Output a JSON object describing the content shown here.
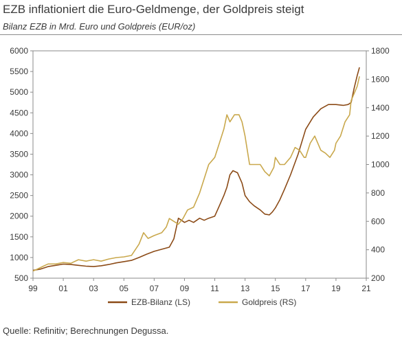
{
  "chart_data": {
    "type": "line",
    "title": "EZB inflationiert die Euro-Geldmenge, der Goldpreis steigt",
    "subtitle": "Bilanz EZB in Mrd. Euro und Goldpreis (EUR/oz)",
    "source": "Quelle: Refinitiv; Berechnungen Degussa.",
    "x_ticks": [
      "99",
      "01",
      "03",
      "05",
      "07",
      "09",
      "11",
      "13",
      "15",
      "17",
      "19",
      "21"
    ],
    "x_range": [
      1999,
      2021
    ],
    "y_left": {
      "ylim": [
        500,
        6000
      ],
      "ticks": [
        500,
        1000,
        1500,
        2000,
        2500,
        3000,
        3500,
        4000,
        4500,
        5000,
        5500,
        6000
      ]
    },
    "y_right": {
      "ylim": [
        200,
        1800
      ],
      "ticks": [
        200,
        400,
        600,
        800,
        1000,
        1200,
        1400,
        1600,
        1800
      ]
    },
    "series": [
      {
        "name": "EZB-Bilanz (LS)",
        "axis": "left",
        "color": "#8B4A16",
        "x": [
          1999,
          1999.5,
          2000,
          2000.5,
          2001,
          2001.5,
          2002,
          2002.5,
          2003,
          2003.5,
          2004,
          2004.5,
          2005,
          2005.5,
          2006,
          2006.5,
          2007,
          2007.5,
          2008,
          2008.3,
          2008.6,
          2008.8,
          2009,
          2009.3,
          2009.6,
          2010,
          2010.3,
          2010.6,
          2011,
          2011.3,
          2011.6,
          2011.8,
          2012,
          2012.2,
          2012.5,
          2012.8,
          2013,
          2013.3,
          2013.6,
          2014,
          2014.3,
          2014.6,
          2014.8,
          2015,
          2015.3,
          2015.6,
          2016,
          2016.5,
          2017,
          2017.5,
          2018,
          2018.5,
          2019,
          2019.5,
          2019.8,
          2020,
          2020.2,
          2020.4,
          2020.55
        ],
        "values": [
          690,
          720,
          780,
          810,
          840,
          830,
          810,
          790,
          780,
          800,
          830,
          870,
          900,
          930,
          1000,
          1080,
          1150,
          1200,
          1250,
          1450,
          1950,
          1900,
          1850,
          1900,
          1850,
          1950,
          1900,
          1950,
          2000,
          2250,
          2500,
          2700,
          3000,
          3100,
          3050,
          2800,
          2500,
          2350,
          2250,
          2150,
          2050,
          2030,
          2100,
          2200,
          2400,
          2650,
          3000,
          3500,
          4100,
          4400,
          4600,
          4700,
          4700,
          4680,
          4700,
          4750,
          5100,
          5400,
          5600
        ]
      },
      {
        "name": "Goldpreis (RS)",
        "axis": "right",
        "color": "#C9A84C",
        "x": [
          1999,
          1999.3,
          1999.7,
          2000,
          2000.5,
          2001,
          2001.5,
          2002,
          2002.5,
          2003,
          2003.5,
          2004,
          2004.5,
          2005,
          2005.5,
          2006,
          2006.3,
          2006.6,
          2007,
          2007.5,
          2007.8,
          2008,
          2008.3,
          2008.6,
          2008.9,
          2009.2,
          2009.6,
          2010,
          2010.3,
          2010.6,
          2011,
          2011.3,
          2011.6,
          2011.8,
          2012,
          2012.3,
          2012.6,
          2012.8,
          2013,
          2013.3,
          2013.6,
          2014,
          2014.3,
          2014.6,
          2014.9,
          2015,
          2015.3,
          2015.6,
          2016,
          2016.3,
          2016.6,
          2016.9,
          2017,
          2017.3,
          2017.6,
          2018,
          2018.3,
          2018.6,
          2018.9,
          2019,
          2019.3,
          2019.6,
          2019.9,
          2020,
          2020.2,
          2020.4,
          2020.55
        ],
        "values": [
          250,
          265,
          285,
          300,
          300,
          310,
          305,
          330,
          320,
          330,
          320,
          335,
          345,
          350,
          360,
          440,
          520,
          480,
          500,
          520,
          560,
          620,
          600,
          580,
          620,
          680,
          700,
          800,
          900,
          1000,
          1050,
          1150,
          1250,
          1350,
          1300,
          1350,
          1350,
          1300,
          1200,
          1000,
          1000,
          1000,
          950,
          920,
          980,
          1050,
          1000,
          1000,
          1050,
          1120,
          1100,
          1050,
          1050,
          1150,
          1200,
          1100,
          1080,
          1050,
          1100,
          1150,
          1200,
          1300,
          1350,
          1450,
          1500,
          1550,
          1620
        ]
      }
    ],
    "legend": {
      "placement": "bottom"
    },
    "grid": false
  }
}
